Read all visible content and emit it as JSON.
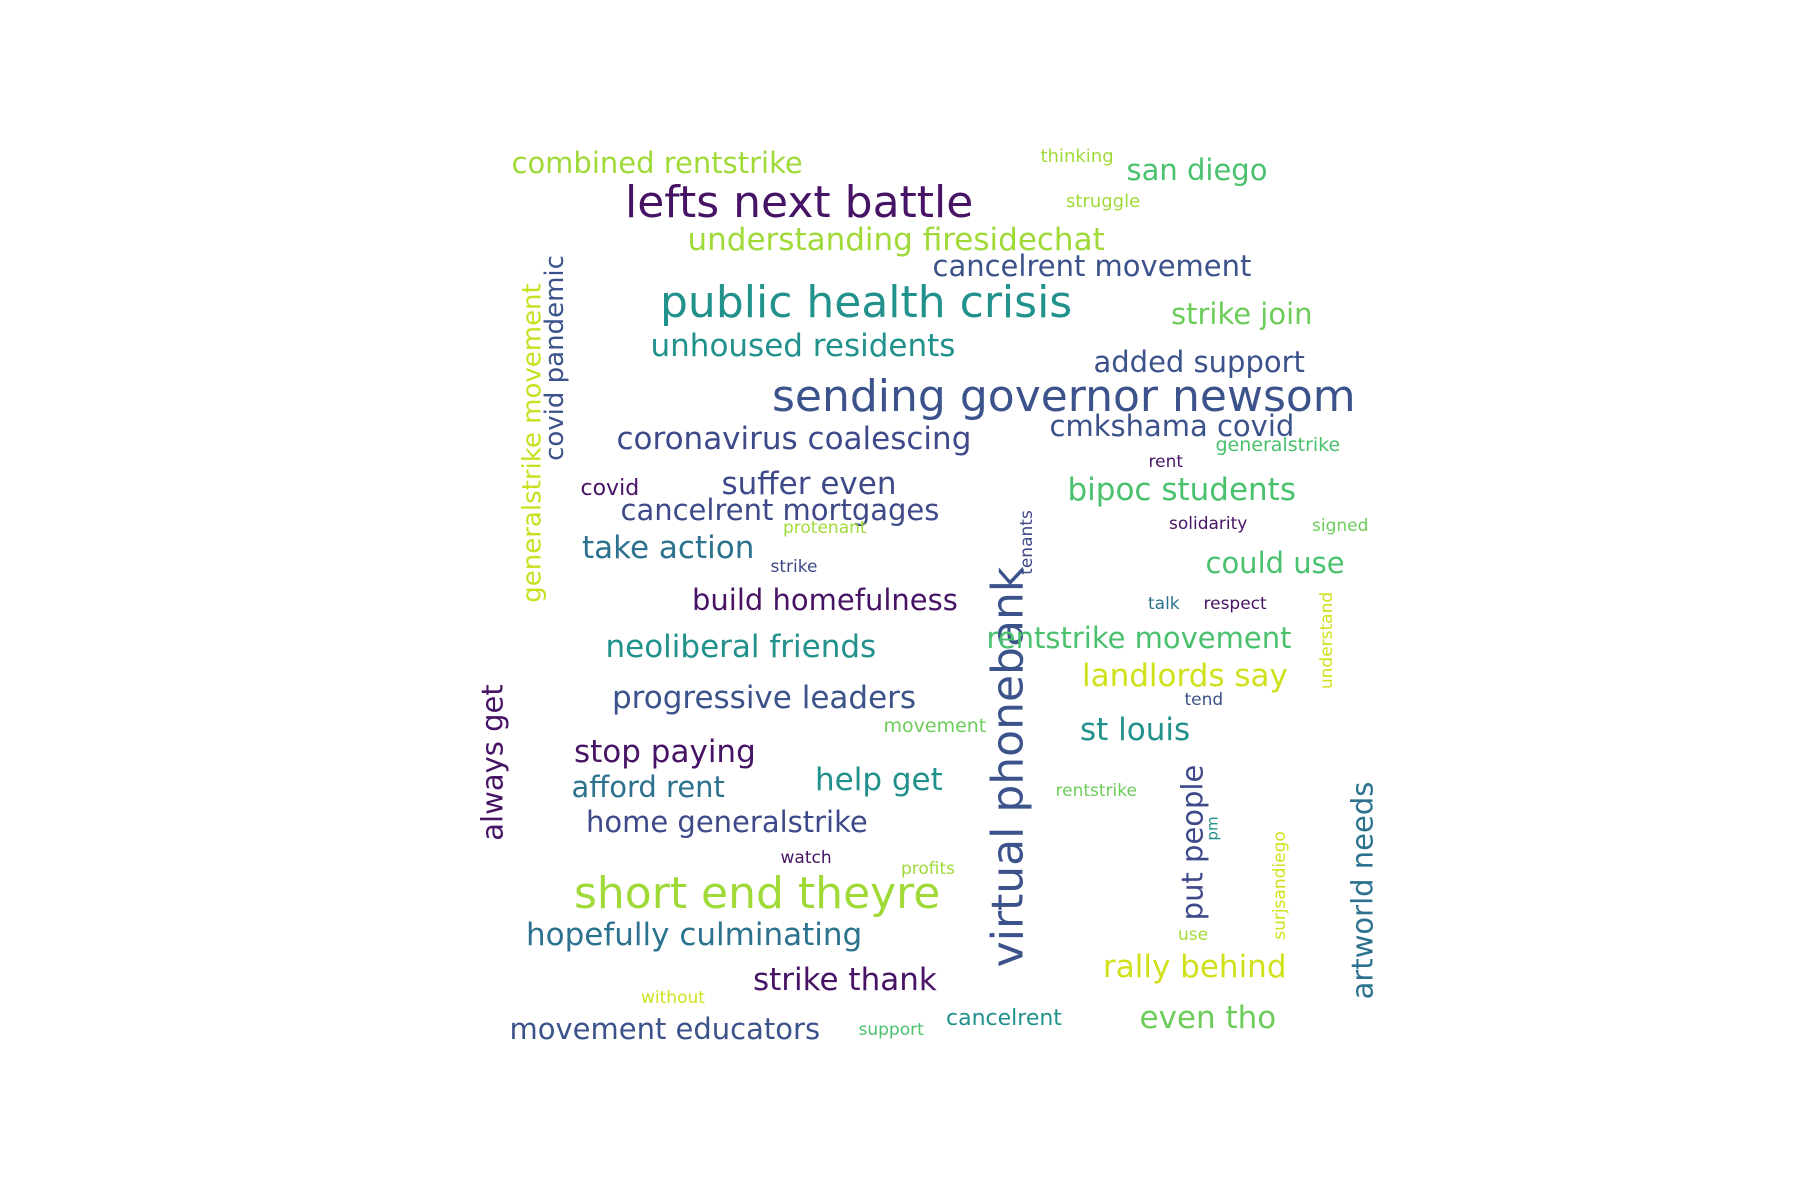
{
  "words": [
    {
      "text": "lefts next battle",
      "color": "#471365",
      "orientation": "horizontal"
    },
    {
      "text": "public health crisis",
      "color": "#21918c",
      "orientation": "horizontal"
    },
    {
      "text": "sending governor newsom",
      "color": "#3b528b",
      "orientation": "horizontal"
    },
    {
      "text": "short end theyre",
      "color": "#a0da39",
      "orientation": "horizontal"
    },
    {
      "text": "virtual phonebank",
      "color": "#3b528b",
      "orientation": "vertical"
    },
    {
      "text": "combined rentstrike",
      "color": "#a0da39",
      "orientation": "horizontal"
    },
    {
      "text": "san diego",
      "color": "#4ac16d",
      "orientation": "horizontal"
    },
    {
      "text": "thinking",
      "color": "#a0da39",
      "orientation": "horizontal"
    },
    {
      "text": "struggle",
      "color": "#a0da39",
      "orientation": "horizontal"
    },
    {
      "text": "understanding firesidechat",
      "color": "#a0da39",
      "orientation": "horizontal"
    },
    {
      "text": "cancelrent movement",
      "color": "#3b528b",
      "orientation": "horizontal"
    },
    {
      "text": "strike join",
      "color": "#6ccd5a",
      "orientation": "horizontal"
    },
    {
      "text": "unhoused residents",
      "color": "#21918c",
      "orientation": "horizontal"
    },
    {
      "text": "added support",
      "color": "#3b528b",
      "orientation": "horizontal"
    },
    {
      "text": "cmkshama covid",
      "color": "#3b528b",
      "orientation": "horizontal"
    },
    {
      "text": "generalstrike",
      "color": "#4ac16d",
      "orientation": "horizontal"
    },
    {
      "text": "coronavirus coalescing",
      "color": "#3e4989",
      "orientation": "horizontal"
    },
    {
      "text": "rent",
      "color": "#471365",
      "orientation": "horizontal"
    },
    {
      "text": "covid",
      "color": "#471365",
      "orientation": "horizontal"
    },
    {
      "text": "suffer even",
      "color": "#3e4989",
      "orientation": "horizontal"
    },
    {
      "text": "bipoc students",
      "color": "#4ac16d",
      "orientation": "horizontal"
    },
    {
      "text": "cancelrent mortgages",
      "color": "#3e4989",
      "orientation": "horizontal"
    },
    {
      "text": "protenant",
      "color": "#a0da39",
      "orientation": "horizontal"
    },
    {
      "text": "solidarity",
      "color": "#471365",
      "orientation": "horizontal"
    },
    {
      "text": "signed",
      "color": "#6ccd5a",
      "orientation": "horizontal"
    },
    {
      "text": "take action",
      "color": "#2c728e",
      "orientation": "horizontal"
    },
    {
      "text": "strike",
      "color": "#3e4989",
      "orientation": "horizontal"
    },
    {
      "text": "could use",
      "color": "#4ac16d",
      "orientation": "horizontal"
    },
    {
      "text": "tenants",
      "color": "#3e4989",
      "orientation": "vertical"
    },
    {
      "text": "build homefulness",
      "color": "#471365",
      "orientation": "horizontal"
    },
    {
      "text": "talk",
      "color": "#2c728e",
      "orientation": "horizontal"
    },
    {
      "text": "respect",
      "color": "#471365",
      "orientation": "horizontal"
    },
    {
      "text": "understand",
      "color": "#d0e11c",
      "orientation": "vertical"
    },
    {
      "text": "rentstrike movement",
      "color": "#4ac16d",
      "orientation": "horizontal"
    },
    {
      "text": "neoliberal friends",
      "color": "#21918c",
      "orientation": "horizontal"
    },
    {
      "text": "landlords say",
      "color": "#d0e11c",
      "orientation": "horizontal"
    },
    {
      "text": "tend",
      "color": "#3b528b",
      "orientation": "horizontal"
    },
    {
      "text": "progressive leaders",
      "color": "#3b528b",
      "orientation": "horizontal"
    },
    {
      "text": "movement",
      "color": "#6ccd5a",
      "orientation": "horizontal"
    },
    {
      "text": "st louis",
      "color": "#21918c",
      "orientation": "horizontal"
    },
    {
      "text": "stop paying",
      "color": "#471365",
      "orientation": "horizontal"
    },
    {
      "text": "help get",
      "color": "#21918c",
      "orientation": "horizontal"
    },
    {
      "text": "afford rent",
      "color": "#2c728e",
      "orientation": "horizontal"
    },
    {
      "text": "rentstrike",
      "color": "#6ccd5a",
      "orientation": "horizontal"
    },
    {
      "text": "home generalstrike",
      "color": "#3e4989",
      "orientation": "horizontal"
    },
    {
      "text": "watch",
      "color": "#471365",
      "orientation": "horizontal"
    },
    {
      "text": "profits",
      "color": "#a0da39",
      "orientation": "horizontal"
    },
    {
      "text": "hopefully culminating",
      "color": "#2c728e",
      "orientation": "horizontal"
    },
    {
      "text": "use",
      "color": "#a0da39",
      "orientation": "horizontal"
    },
    {
      "text": "strike thank",
      "color": "#471365",
      "orientation": "horizontal"
    },
    {
      "text": "rally behind",
      "color": "#d0e11c",
      "orientation": "horizontal"
    },
    {
      "text": "without",
      "color": "#d0e11c",
      "orientation": "horizontal"
    },
    {
      "text": "even tho",
      "color": "#6ccd5a",
      "orientation": "horizontal"
    },
    {
      "text": "cancelrent",
      "color": "#21918c",
      "orientation": "horizontal"
    },
    {
      "text": "support",
      "color": "#4ac16d",
      "orientation": "horizontal"
    },
    {
      "text": "movement educators",
      "color": "#3b528b",
      "orientation": "horizontal"
    },
    {
      "text": "generalstrike movement",
      "color": "#c8e020",
      "orientation": "vertical"
    },
    {
      "text": "covid pandemic",
      "color": "#3b528b",
      "orientation": "vertical"
    },
    {
      "text": "always get",
      "color": "#471365",
      "orientation": "vertical"
    },
    {
      "text": "put people",
      "color": "#3e4989",
      "orientation": "vertical"
    },
    {
      "text": "pm",
      "color": "#21918c",
      "orientation": "vertical"
    },
    {
      "text": "surjsandiego",
      "color": "#d0e11c",
      "orientation": "vertical"
    },
    {
      "text": "artworld needs",
      "color": "#2c728e",
      "orientation": "vertical"
    }
  ]
}
